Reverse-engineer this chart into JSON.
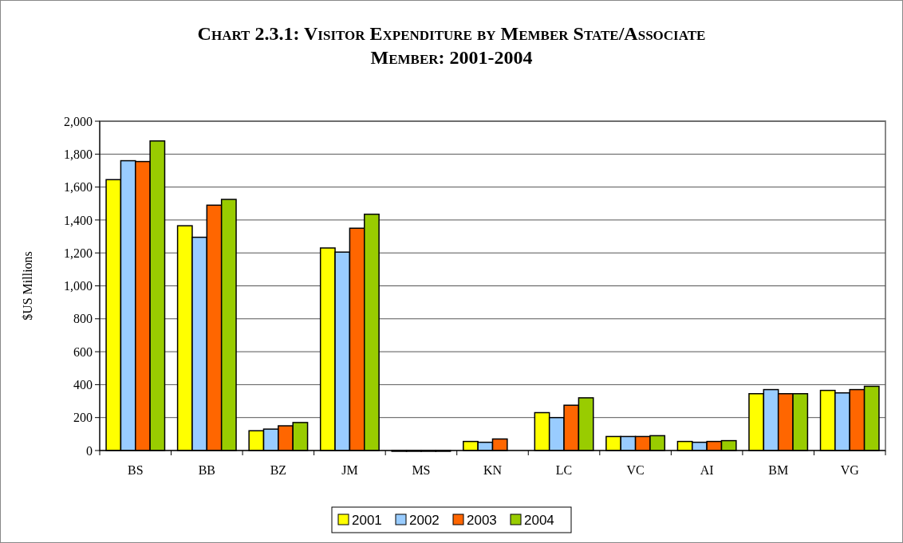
{
  "chart_data": {
    "type": "bar",
    "title": "Chart 2.3.1: Visitor Expenditure by Member State/Associate Member: 2001-2004",
    "ylabel": "$US Millions",
    "categories": [
      "BS",
      "BB",
      "BZ",
      "JM",
      "MS",
      "KN",
      "LC",
      "VC",
      "AI",
      "BM",
      "VG"
    ],
    "series": [
      {
        "name": "2001",
        "color": "#ffff00",
        "values": [
          1645,
          1365,
          120,
          1230,
          0,
          55,
          230,
          85,
          55,
          345,
          365
        ]
      },
      {
        "name": "2002",
        "color": "#99ccff",
        "values": [
          1760,
          1295,
          130,
          1205,
          0,
          50,
          200,
          85,
          50,
          370,
          350
        ]
      },
      {
        "name": "2003",
        "color": "#ff6600",
        "values": [
          1755,
          1490,
          150,
          1350,
          0,
          70,
          275,
          85,
          55,
          345,
          370
        ]
      },
      {
        "name": "2004",
        "color": "#99cc00",
        "values": [
          1880,
          1525,
          170,
          1435,
          0,
          null,
          320,
          90,
          60,
          345,
          390
        ]
      }
    ],
    "ylim": [
      0,
      2000
    ],
    "yticks": [
      {
        "value": 0,
        "label": "0"
      },
      {
        "value": 200,
        "label": "200"
      },
      {
        "value": 400,
        "label": "400"
      },
      {
        "value": 600,
        "label": "600"
      },
      {
        "value": 800,
        "label": "800"
      },
      {
        "value": 1000,
        "label": "1,000"
      },
      {
        "value": 1200,
        "label": "1,200"
      },
      {
        "value": 1400,
        "label": "1,400"
      },
      {
        "value": 1600,
        "label": "1,600"
      },
      {
        "value": 1800,
        "label": "1,800"
      },
      {
        "value": 2000,
        "label": "2,000"
      }
    ],
    "grid": "y",
    "legend": "bottom"
  }
}
